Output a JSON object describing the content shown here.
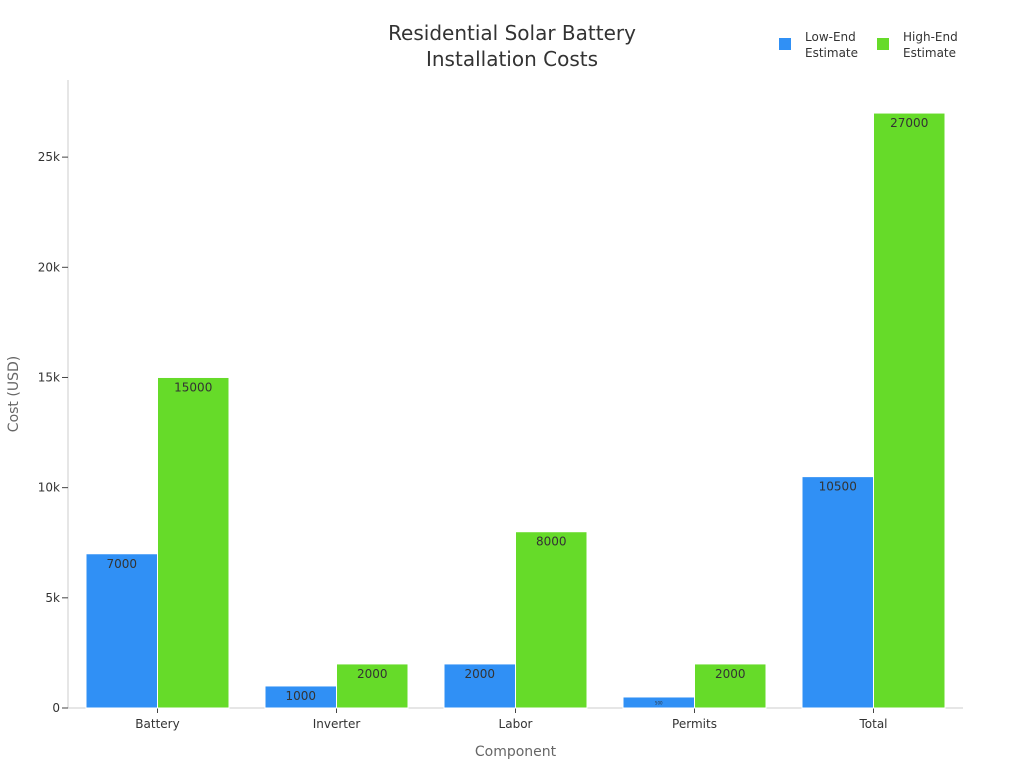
{
  "chart_data": {
    "type": "bar",
    "title_lines": [
      "Residential Solar Battery",
      "Installation Costs"
    ],
    "xlabel": "Component",
    "ylabel": "Cost (USD)",
    "categories": [
      "Battery",
      "Inverter",
      "Labor",
      "Permits",
      "Total"
    ],
    "series": [
      {
        "name": "Low-End Estimate",
        "legend_lines": [
          "Low-End",
          "Estimate"
        ],
        "color": "#3090f5",
        "values": [
          7000,
          1000,
          2000,
          500,
          10500
        ],
        "labels": [
          "7000",
          "1000",
          "2000",
          "500",
          "10500"
        ]
      },
      {
        "name": "High-End Estimate",
        "legend_lines": [
          "High-End",
          "Estimate"
        ],
        "color": "#66db29",
        "values": [
          15000,
          2000,
          8000,
          2000,
          27000
        ],
        "labels": [
          "15000",
          "2000",
          "8000",
          "2000",
          "27000"
        ]
      }
    ],
    "ylim": [
      0,
      28500
    ],
    "yticks": [
      0,
      5000,
      10000,
      15000,
      20000,
      25000
    ],
    "ytick_labels": [
      "0",
      "5k",
      "10k",
      "15k",
      "20k",
      "25k"
    ],
    "grid": false,
    "legend_position": "top-right"
  }
}
